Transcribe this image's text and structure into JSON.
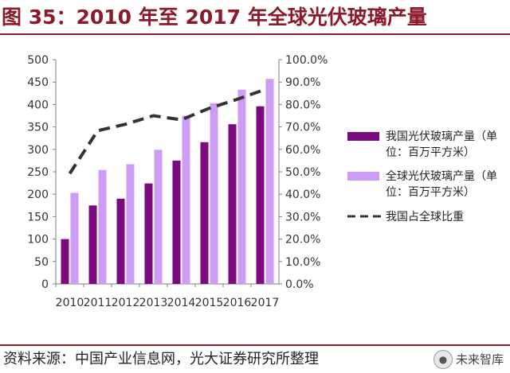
{
  "figure": {
    "title": "图 35：2010 年至 2017 年全球光伏玻璃产量",
    "source": "资料来源：中国产业信息网，光大证券研究所整理",
    "watermark": "未来智库"
  },
  "colors": {
    "title": "#8b1a2b",
    "china_bar": "#7b0a7e",
    "global_bar": "#cf9cf5",
    "ratio_line": "#333333"
  },
  "chart_data": {
    "type": "bar",
    "categories": [
      "2010",
      "2011",
      "2012",
      "2013",
      "2014",
      "2015",
      "2016",
      "2017"
    ],
    "series": [
      {
        "name": "我国光伏玻璃产量（单位：百万平方米）",
        "type": "bar",
        "axis": "left",
        "values": [
          100,
          175,
          190,
          224,
          275,
          316,
          356,
          396
        ]
      },
      {
        "name": "全球光伏玻璃产量（单位：百万平方米）",
        "type": "bar",
        "axis": "left",
        "values": [
          203,
          254,
          267,
          299,
          375,
          403,
          433,
          457
        ]
      },
      {
        "name": "我国占全球比重",
        "type": "line",
        "axis": "right",
        "style": "dashed",
        "values": [
          0.492,
          0.683,
          0.712,
          0.75,
          0.732,
          0.783,
          0.823,
          0.867
        ]
      }
    ],
    "y_left": {
      "min": 0,
      "max": 500,
      "step": 50,
      "ticks": [
        "0",
        "50",
        "100",
        "150",
        "200",
        "250",
        "300",
        "350",
        "400",
        "450",
        "500"
      ]
    },
    "y_right": {
      "min": 0,
      "max": 1,
      "step": 0.1,
      "ticks": [
        "0.0%",
        "10.0%",
        "20.0%",
        "30.0%",
        "40.0%",
        "50.0%",
        "60.0%",
        "70.0%",
        "80.0%",
        "90.0%",
        "100.0%"
      ]
    },
    "legend": {
      "placement": "right",
      "items": [
        {
          "lines": [
            "我国光伏玻璃产量（单",
            "位：百万平方米）"
          ],
          "kind": "bar",
          "color": "#7b0a7e"
        },
        {
          "lines": [
            "全球光伏玻璃产量（单",
            "位：百万平方米）"
          ],
          "kind": "bar",
          "color": "#cf9cf5"
        },
        {
          "lines": [
            "我国占全球比重"
          ],
          "kind": "line",
          "color": "#333333"
        }
      ]
    },
    "grid": false
  }
}
